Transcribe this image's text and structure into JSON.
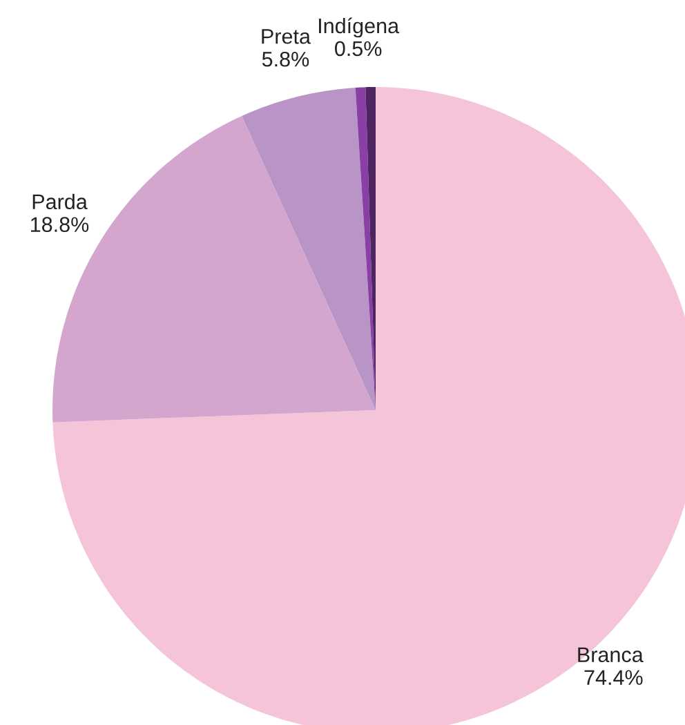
{
  "chart_data": {
    "type": "pie",
    "categories": [
      "Branca",
      "Parda",
      "Preta",
      "Indígena",
      null
    ],
    "values": [
      74.4,
      18.8,
      5.8,
      0.5,
      0.5
    ],
    "value_labels": [
      "74.4%",
      "18.8%",
      "5.8%",
      "0.5%",
      null
    ],
    "colors": [
      "#f5c4d9",
      "#d5a6cd",
      "#b895c6",
      "#8a3fa6",
      "#4e2461"
    ],
    "legend": false
  }
}
